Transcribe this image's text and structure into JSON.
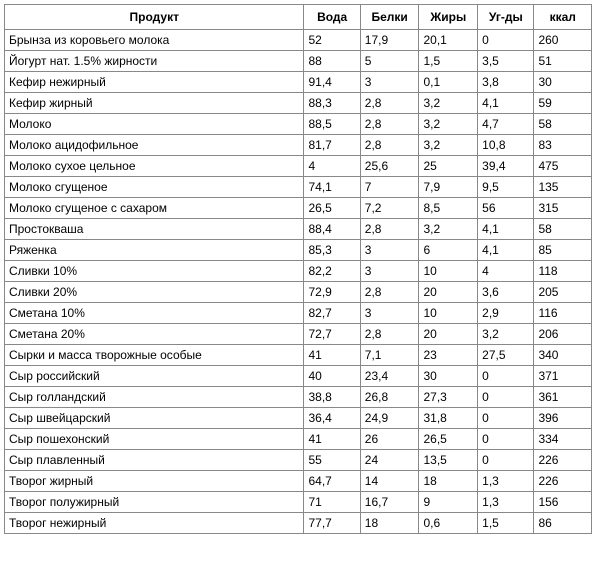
{
  "table": {
    "columns": [
      "Продукт",
      "Вода",
      "Белки",
      "Жиры",
      "Уг-ды",
      "ккал"
    ],
    "rows": [
      [
        "Брынза из коровьего молока",
        "52",
        "17,9",
        "20,1",
        "0",
        "260"
      ],
      [
        "Йогурт нат. 1.5% жирности",
        "88",
        "5",
        "1,5",
        "3,5",
        "51"
      ],
      [
        "Кефир нежирный",
        "91,4",
        "3",
        "0,1",
        "3,8",
        "30"
      ],
      [
        "Кефир жирный",
        "88,3",
        "2,8",
        "3,2",
        "4,1",
        "59"
      ],
      [
        "Молоко",
        "88,5",
        "2,8",
        "3,2",
        "4,7",
        "58"
      ],
      [
        "Молоко ацидофильное",
        "81,7",
        "2,8",
        "3,2",
        "10,8",
        "83"
      ],
      [
        "Молоко сухое цельное",
        "4",
        "25,6",
        "25",
        "39,4",
        "475"
      ],
      [
        "Молоко сгущеное",
        "74,1",
        "7",
        "7,9",
        "9,5",
        "135"
      ],
      [
        "Молоко сгущеное с сахаром",
        "26,5",
        "7,2",
        "8,5",
        "56",
        "315"
      ],
      [
        "Простокваша",
        "88,4",
        "2,8",
        "3,2",
        "4,1",
        "58"
      ],
      [
        "Ряженка",
        "85,3",
        "3",
        "6",
        "4,1",
        "85"
      ],
      [
        "Сливки 10%",
        "82,2",
        "3",
        "10",
        "4",
        "118"
      ],
      [
        "Сливки 20%",
        "72,9",
        "2,8",
        "20",
        "3,6",
        "205"
      ],
      [
        "Сметана 10%",
        "82,7",
        "3",
        "10",
        "2,9",
        "116"
      ],
      [
        "Сметана 20%",
        "72,7",
        "2,8",
        "20",
        "3,2",
        "206"
      ],
      [
        "Сырки и масса творожные особые",
        "41",
        "7,1",
        "23",
        "27,5",
        "340"
      ],
      [
        "Сыр российский",
        "40",
        "23,4",
        "30",
        "0",
        "371"
      ],
      [
        "Сыр голландский",
        "38,8",
        "26,8",
        "27,3",
        "0",
        "361"
      ],
      [
        "Сыр швейцарский",
        "36,4",
        "24,9",
        "31,8",
        "0",
        "396"
      ],
      [
        "Сыр пошехонский",
        "41",
        "26",
        "26,5",
        "0",
        "334"
      ],
      [
        "Сыр плавленный",
        "55",
        "24",
        "13,5",
        "0",
        "226"
      ],
      [
        "Творог жирный",
        "64,7",
        "14",
        "18",
        "1,3",
        "226"
      ],
      [
        "Творог полужирный",
        "71",
        "16,7",
        "9",
        "1,3",
        "156"
      ],
      [
        "Творог нежирный",
        "77,7",
        "18",
        "0,6",
        "1,5",
        "86"
      ]
    ]
  }
}
